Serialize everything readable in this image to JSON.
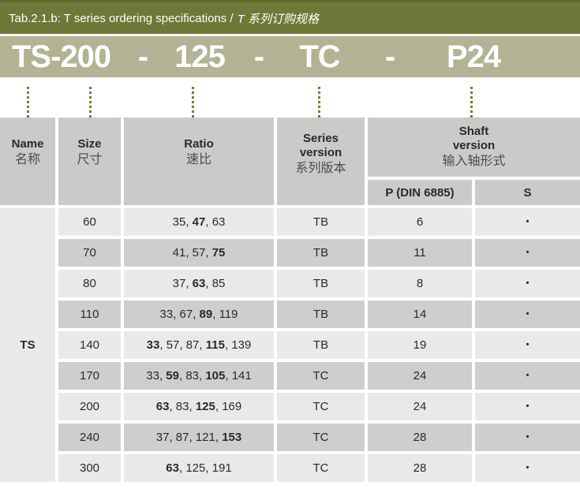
{
  "title_bar": {
    "label_en": "Tab.2.1.b: T series ordering specifications /",
    "label_zh": "T 系列订购规格"
  },
  "ordering_code": {
    "parts": [
      "TS-200",
      "-",
      "125",
      "-",
      "TC",
      "-",
      "P24"
    ]
  },
  "table": {
    "headers": {
      "name": {
        "en": "Name",
        "zh": "名称"
      },
      "size": {
        "en": "Size",
        "zh": "尺寸"
      },
      "ratio": {
        "en": "Ratio",
        "zh": "速比"
      },
      "series": {
        "en1": "Series",
        "en2": "version",
        "zh": "系列版本"
      },
      "shaft": {
        "en1": "Shaft",
        "en2": "version",
        "zh": "输入轴形式"
      },
      "shaft_sub_p": "P (DIN 6885)",
      "shaft_sub_s": "S"
    },
    "name_value": "TS",
    "rows": [
      {
        "size": "60",
        "ratios": [
          "35",
          "47",
          "63"
        ],
        "ratio_bold": [
          "47"
        ],
        "series": "TB",
        "p": "6",
        "s": "•"
      },
      {
        "size": "70",
        "ratios": [
          "41",
          "57",
          "75"
        ],
        "ratio_bold": [
          "75"
        ],
        "series": "TB",
        "p": "11",
        "s": "•"
      },
      {
        "size": "80",
        "ratios": [
          "37",
          "63",
          "85"
        ],
        "ratio_bold": [
          "63"
        ],
        "series": "TB",
        "p": "8",
        "s": "•"
      },
      {
        "size": "110",
        "ratios": [
          "33",
          "67",
          "89",
          "119"
        ],
        "ratio_bold": [
          "89"
        ],
        "series": "TB",
        "p": "14",
        "s": "•"
      },
      {
        "size": "140",
        "ratios": [
          "33",
          "57",
          "87",
          "115",
          "139"
        ],
        "ratio_bold": [
          "33",
          "115"
        ],
        "series": "TB",
        "p": "19",
        "s": "•"
      },
      {
        "size": "170",
        "ratios": [
          "33",
          "59",
          "83",
          "105",
          "141"
        ],
        "ratio_bold": [
          "59",
          "105"
        ],
        "series": "TC",
        "p": "24",
        "s": "•"
      },
      {
        "size": "200",
        "ratios": [
          "63",
          "83",
          "125",
          "169"
        ],
        "ratio_bold": [
          "63",
          "125"
        ],
        "series": "TC",
        "p": "24",
        "s": "•"
      },
      {
        "size": "240",
        "ratios": [
          "37",
          "87",
          "121",
          "153"
        ],
        "ratio_bold": [
          "153"
        ],
        "series": "TC",
        "p": "28",
        "s": "•"
      },
      {
        "size": "300",
        "ratios": [
          "63",
          "125",
          "191"
        ],
        "ratio_bold": [
          "63"
        ],
        "series": "TC",
        "p": "28",
        "s": "•"
      }
    ]
  },
  "colors": {
    "title_bar_olive": "#6d7936",
    "title_bar_top_edge": "#5e6a2c",
    "code_band_khaki": "#b2b394",
    "dotted_line_olive": "#7d7b28",
    "header_gray": "#cacaca",
    "row_light_gray": "#e9e9e9",
    "row_dark_gray": "#cecece",
    "text_white": "#ffffff",
    "text_dark": "#2a2a2a"
  }
}
